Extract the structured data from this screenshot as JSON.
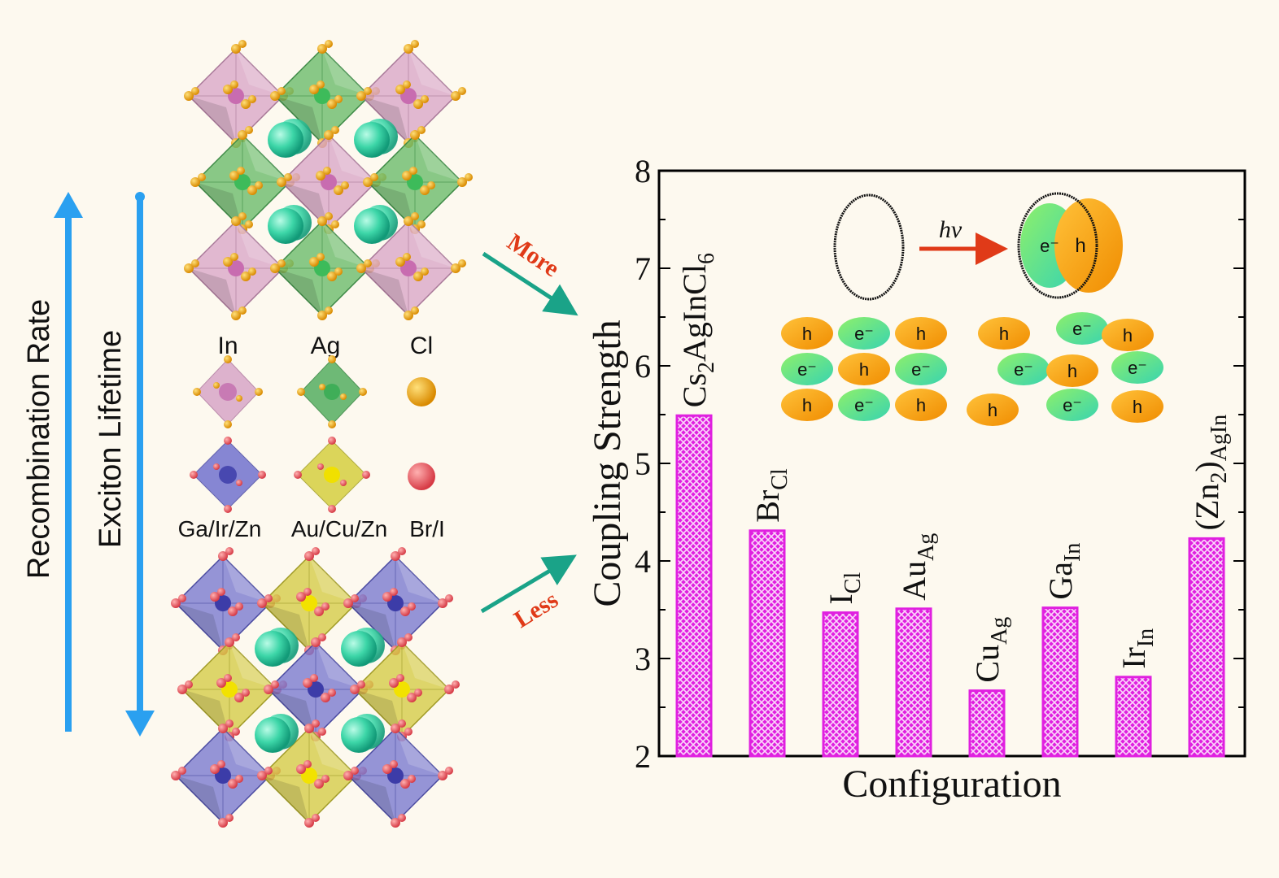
{
  "left_panel": {
    "arrow_up_label": "Recombination Rate",
    "arrow_down_label": "Exciton Lifetime",
    "legend_top": [
      "In",
      "Ag",
      "Cl"
    ],
    "legend_bottom": [
      "Ga/Ir/Zn",
      "Au/Cu/Zn",
      "Br/I"
    ],
    "more_label": "More",
    "less_label": "Less"
  },
  "inset": {
    "hv_label": "hν",
    "electron": "e⁻",
    "hole": "h"
  },
  "colors": {
    "bar": "#e020e0",
    "bar_light": "#f7b8f7",
    "accent_blue": "#2aa0f0",
    "accent_teal": "#1aa388",
    "accent_red": "#e03a18",
    "hole": "#f6a21a",
    "electron": "#5ee08a"
  },
  "chart_data": {
    "type": "bar",
    "xlabel": "Configuration",
    "ylabel": "Coupling Strength",
    "ylim": [
      2,
      8
    ],
    "yticks": [
      "2",
      "3",
      "4",
      "5",
      "6",
      "7",
      "8"
    ],
    "categories": [
      {
        "base": "Cs",
        "sub": "2",
        "base2": "AgInCl",
        "sub2": "6"
      },
      {
        "base": "Br",
        "sub": "Cl"
      },
      {
        "base": "I",
        "sub": "Cl"
      },
      {
        "base": "Au",
        "sub": "Ag"
      },
      {
        "base": "Cu",
        "sub": "Ag"
      },
      {
        "base": "Ga",
        "sub": "In"
      },
      {
        "base": "Ir",
        "sub": "In"
      },
      {
        "base": "(Zn",
        "sub": "2",
        "base2": ")",
        "sub2": "AgIn"
      }
    ],
    "values": [
      5.49,
      4.31,
      3.47,
      3.51,
      2.67,
      3.52,
      2.81,
      4.23
    ]
  }
}
